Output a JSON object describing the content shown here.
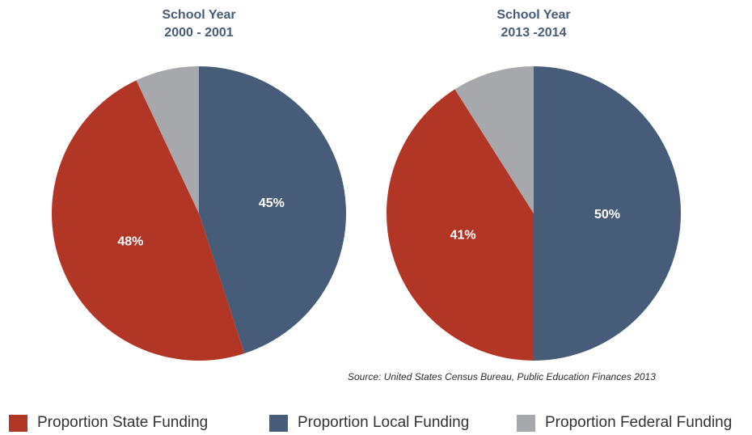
{
  "colors": {
    "state": "#b23626",
    "local": "#465c78",
    "federal": "#a7a8ab",
    "title": "#465c78"
  },
  "chart_data": [
    {
      "type": "pie",
      "title_lines": [
        "School Year",
        "2000 - 2001"
      ],
      "slices": [
        {
          "name": "Proportion Local Funding",
          "value": 45,
          "label": "45%"
        },
        {
          "name": "Proportion State Funding",
          "value": 48,
          "label": "48%"
        },
        {
          "name": "Proportion Federal Funding",
          "value": 7,
          "label": ""
        }
      ]
    },
    {
      "type": "pie",
      "title_lines": [
        "School Year",
        "2013 -2014"
      ],
      "slices": [
        {
          "name": "Proportion Local Funding",
          "value": 50,
          "label": "50%"
        },
        {
          "name": "Proportion State Funding",
          "value": 41,
          "label": "41%"
        },
        {
          "name": "Proportion Federal Funding",
          "value": 9,
          "label": ""
        }
      ]
    }
  ],
  "source": "Source:  United States Census Bureau, Public Education Finances 2013",
  "legend": [
    {
      "key": "state",
      "label": "Proportion State Funding"
    },
    {
      "key": "local",
      "label": "Proportion Local Funding"
    },
    {
      "key": "federal",
      "label": "Proportion Federal Funding"
    }
  ]
}
